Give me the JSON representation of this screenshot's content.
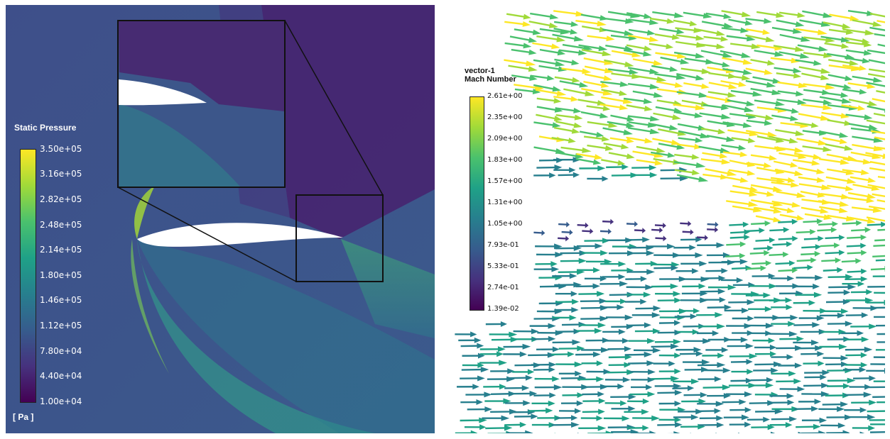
{
  "left_panel": {
    "legend": {
      "title": "Static Pressure",
      "unit": "[ Pa ]",
      "ticks": [
        "3.50e+05",
        "3.16e+05",
        "2.82e+05",
        "2.48e+05",
        "2.14e+05",
        "1.80e+05",
        "1.46e+05",
        "1.12e+05",
        "7.80e+04",
        "4.40e+04",
        "1.00e+04"
      ]
    },
    "colormap": "viridis",
    "background_color": "#3b528b"
  },
  "right_panel": {
    "legend": {
      "title_line1": "vector-1",
      "title_line2": "Mach Number",
      "ticks": [
        "2.61e+00",
        "2.35e+00",
        "2.09e+00",
        "1.83e+00",
        "1.57e+00",
        "1.31e+00",
        "1.05e+00",
        "7.93e-01",
        "5.33e-01",
        "2.74e-01",
        "1.39e-02"
      ]
    },
    "colormap": "viridis"
  }
}
